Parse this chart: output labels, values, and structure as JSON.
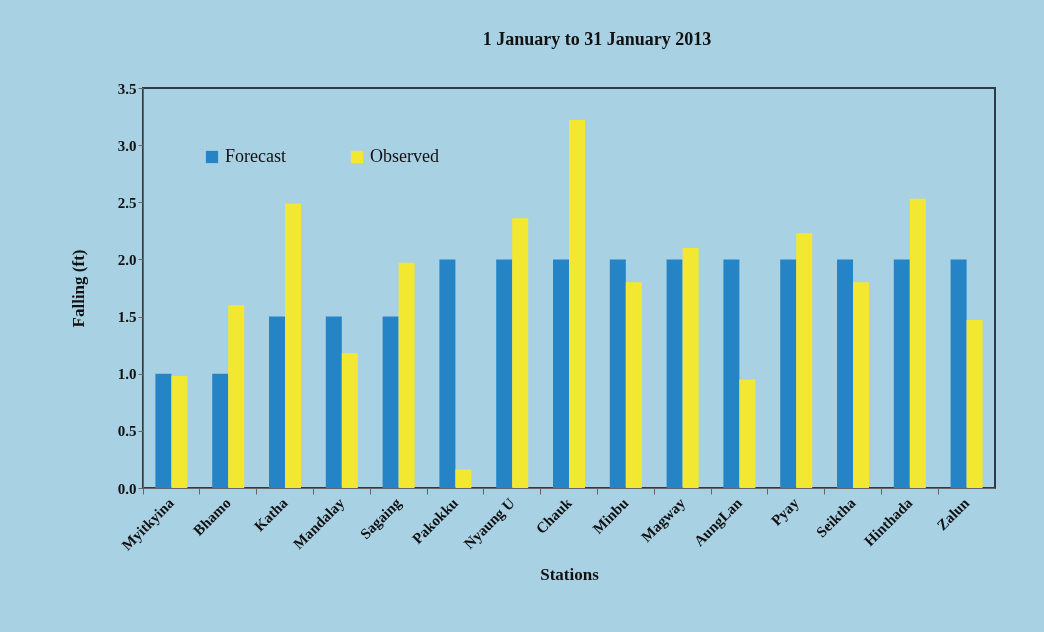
{
  "chart_data": {
    "type": "bar",
    "title": "1 January to 31 January 2013",
    "xlabel": "Stations",
    "ylabel": "Falling (ft)",
    "categories": [
      "Myitkyina",
      "Bhamo",
      "Katha",
      "Mandalay",
      "Sagaing",
      "Pakokku",
      "Nyaung U",
      "Chauk",
      "Minbu",
      "Magway",
      "AungLan",
      "Pyay",
      "Seiktha",
      "Hinthada",
      "Zalun"
    ],
    "series": [
      {
        "name": "Forecast",
        "color": "#2584c6",
        "values": [
          1.0,
          1.0,
          1.5,
          1.5,
          1.5,
          2.0,
          2.0,
          2.0,
          2.0,
          2.0,
          2.0,
          2.0,
          2.0,
          2.0,
          2.0
        ]
      },
      {
        "name": "Observed",
        "color": "#f2e832",
        "values": [
          0.98,
          1.6,
          2.49,
          1.18,
          1.97,
          0.16,
          2.36,
          3.22,
          1.8,
          2.1,
          0.95,
          2.23,
          1.8,
          2.53,
          1.47
        ]
      }
    ],
    "ylim": [
      0,
      3.5
    ],
    "yticks": [
      {
        "value": 0,
        "label": "0.0"
      },
      0.5,
      {
        "value": 1,
        "label": "1.0"
      },
      1.5,
      {
        "value": 2,
        "label": "2.0"
      },
      2.5,
      {
        "value": 3,
        "label": "3.0"
      },
      3.5
    ],
    "legend": "top left"
  }
}
